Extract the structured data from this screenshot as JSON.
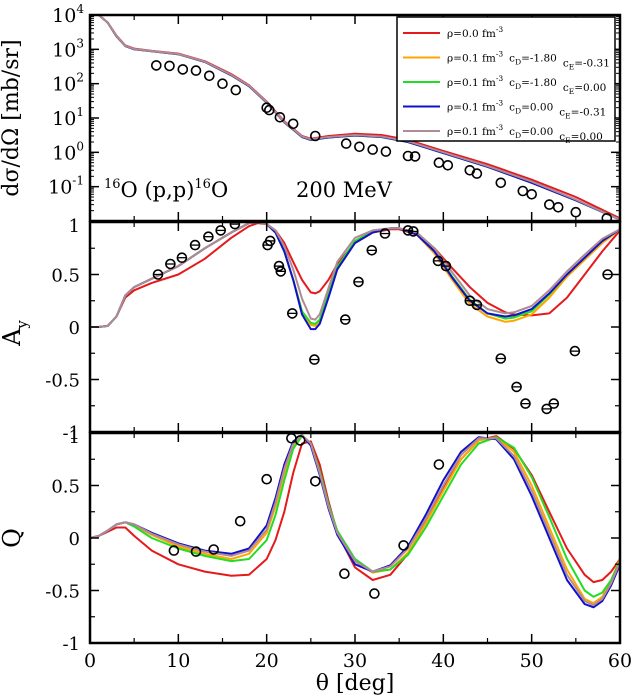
{
  "chart_data": {
    "type": "line",
    "x_axis": {
      "label": "θ [deg]",
      "range": [
        0,
        60
      ],
      "ticks": [
        0,
        10,
        20,
        30,
        40,
        50,
        60
      ],
      "tick_labels": [
        "0",
        "10",
        "20",
        "30",
        "40",
        "50",
        "60"
      ]
    },
    "annotation": {
      "nucleus": "16",
      "reaction_mid": "O (p,p)",
      "nucleus2": "16",
      "reaction_end": "O",
      "energy": "200 MeV"
    },
    "legend": [
      {
        "name": "ρ=0.0 fm",
        "sup": "-3",
        "tail": [],
        "color": "#e41a1c"
      },
      {
        "name": "ρ=0.1 fm",
        "sup": "-3",
        "tail": [
          [
            "c",
            "D",
            "=-1.80"
          ],
          [
            "c",
            "E",
            "=-0.31"
          ]
        ],
        "color": "#ffa500"
      },
      {
        "name": "ρ=0.1 fm",
        "sup": "-3",
        "tail": [
          [
            "c",
            "D",
            "=-1.80"
          ],
          [
            "c",
            "E",
            "=0.00"
          ]
        ],
        "color": "#22dd22"
      },
      {
        "name": "ρ=0.1 fm",
        "sup": "-3",
        "tail": [
          [
            "c",
            "D",
            "=0.00"
          ],
          [
            "c",
            "E",
            "=-0.31"
          ]
        ],
        "color": "#1111cc"
      },
      {
        "name": "ρ=0.1 fm",
        "sup": "-3",
        "tail": [
          [
            "c",
            "D",
            "=0.00"
          ],
          [
            "c",
            "E",
            "=0.00"
          ]
        ],
        "color": "#b08a95"
      }
    ],
    "panels": [
      {
        "id": "cross_section",
        "ylabel": "dσ/dΩ [mb/sr]",
        "yscale": "log",
        "ylim": [
          0.01,
          10000
        ],
        "y_tick_labels": [
          {
            "base": "10",
            "exp": "-1",
            "value": 0.1
          },
          {
            "base": "10",
            "exp": "0",
            "value": 1
          },
          {
            "base": "10",
            "exp": "1",
            "value": 10
          },
          {
            "base": "10",
            "exp": "2",
            "value": 100
          },
          {
            "base": "10",
            "exp": "3",
            "value": 1000
          },
          {
            "base": "10",
            "exp": "4",
            "value": 10000
          }
        ],
        "x": [
          1,
          2,
          3,
          4,
          5,
          7,
          10,
          13,
          16,
          18,
          20,
          22,
          24,
          25,
          27,
          30,
          33,
          36,
          40,
          45,
          50,
          55,
          60
        ],
        "series": [
          {
            "name": "rho0",
            "values": [
              10000,
              6000,
              2500,
              1300,
              1050,
              900,
              750,
              450,
              190,
              90,
              30,
              8,
              3,
              2.5,
              3.0,
              3.5,
              3.2,
              2.3,
              1.1,
              0.45,
              0.16,
              0.05,
              0.012
            ]
          },
          {
            "name": "cD-1.80_cE-0.31",
            "values": [
              10000,
              6000,
              2400,
              1250,
              1000,
              880,
              720,
              430,
              175,
              85,
              28,
              7.5,
              2.8,
              2.3,
              2.7,
              3.1,
              2.8,
              2.0,
              0.95,
              0.38,
              0.13,
              0.04,
              0.011
            ]
          },
          {
            "name": "cD-1.80_cE0.00",
            "values": [
              10000,
              6000,
              2400,
              1250,
              1000,
              880,
              720,
              430,
              175,
              85,
              28,
              7.5,
              2.8,
              2.3,
              2.7,
              3.1,
              2.8,
              2.0,
              0.95,
              0.38,
              0.13,
              0.04,
              0.011
            ]
          },
          {
            "name": "cD0.00_cE-0.31",
            "values": [
              10000,
              6000,
              2400,
              1250,
              1000,
              880,
              720,
              430,
              175,
              85,
              28,
              7.5,
              2.8,
              2.3,
              2.7,
              3.1,
              2.8,
              2.0,
              0.95,
              0.38,
              0.13,
              0.04,
              0.011
            ]
          },
          {
            "name": "cD0.00_cE0.00",
            "values": [
              10000,
              6000,
              2450,
              1270,
              1020,
              890,
              730,
              440,
              180,
              87,
              29,
              7.7,
              2.9,
              2.4,
              2.8,
              3.2,
              2.9,
              2.1,
              1.0,
              0.4,
              0.14,
              0.042,
              0.011
            ]
          }
        ],
        "data_points": {
          "x": [
            7.5,
            9,
            10.5,
            12,
            13.5,
            15,
            16.5,
            20,
            20.3,
            21.5,
            23,
            25.5,
            29,
            30.5,
            32,
            33.5,
            36,
            36.8,
            39.5,
            40.5,
            43,
            43.8,
            46.5,
            49,
            50,
            52,
            53,
            55,
            58.5
          ],
          "y": [
            340,
            330,
            260,
            240,
            170,
            100,
            65,
            20,
            17,
            10.5,
            6.8,
            3.0,
            1.8,
            1.45,
            1.2,
            1.05,
            0.78,
            0.76,
            0.5,
            0.42,
            0.3,
            0.24,
            0.13,
            0.075,
            0.06,
            0.03,
            0.025,
            0.018,
            0.012
          ]
        }
      },
      {
        "id": "analyzing_power",
        "ylabel_main": "A",
        "ylabel_sub": "y",
        "ylim": [
          -1,
          1
        ],
        "ticks": [
          -1,
          -0.5,
          0,
          0.5,
          1
        ],
        "tick_labels": [
          "-1",
          "-0.5",
          "0",
          "0.5",
          "1"
        ],
        "x": [
          0,
          1,
          2,
          3,
          4,
          5,
          7,
          10,
          13,
          16,
          18,
          19,
          20,
          21,
          22,
          23,
          24,
          25,
          25.5,
          26,
          27,
          28,
          30,
          32,
          34,
          35,
          37,
          39,
          41,
          43,
          45,
          47,
          48,
          50,
          52,
          54,
          56,
          58,
          60
        ],
        "series": [
          {
            "name": "rho0",
            "values": [
              0,
              0,
              0.01,
              0.1,
              0.28,
              0.35,
              0.42,
              0.5,
              0.65,
              0.85,
              0.96,
              0.99,
              0.98,
              0.92,
              0.8,
              0.62,
              0.45,
              0.33,
              0.32,
              0.34,
              0.45,
              0.6,
              0.8,
              0.9,
              0.93,
              0.93,
              0.88,
              0.75,
              0.56,
              0.38,
              0.23,
              0.14,
              0.12,
              0.11,
              0.13,
              0.28,
              0.5,
              0.72,
              0.92
            ]
          },
          {
            "name": "cD-1.80_cE-0.31",
            "values": [
              0,
              0,
              0.01,
              0.1,
              0.3,
              0.38,
              0.46,
              0.58,
              0.75,
              0.9,
              0.99,
              1.0,
              0.98,
              0.9,
              0.72,
              0.45,
              0.15,
              0.02,
              0.01,
              0.05,
              0.3,
              0.55,
              0.8,
              0.9,
              0.94,
              0.94,
              0.88,
              0.7,
              0.45,
              0.22,
              0.1,
              0.05,
              0.06,
              0.12,
              0.28,
              0.48,
              0.64,
              0.8,
              0.93
            ]
          },
          {
            "name": "cD-1.80_cE0.00",
            "values": [
              0,
              0,
              0.01,
              0.1,
              0.3,
              0.38,
              0.46,
              0.58,
              0.75,
              0.9,
              0.99,
              1.0,
              0.98,
              0.9,
              0.72,
              0.45,
              0.15,
              0.04,
              0.03,
              0.07,
              0.32,
              0.57,
              0.82,
              0.91,
              0.94,
              0.94,
              0.89,
              0.72,
              0.48,
              0.26,
              0.13,
              0.08,
              0.09,
              0.15,
              0.31,
              0.5,
              0.66,
              0.82,
              0.93
            ]
          },
          {
            "name": "cD0.00_cE-0.31",
            "values": [
              0,
              0,
              0.01,
              0.1,
              0.3,
              0.38,
              0.46,
              0.58,
              0.75,
              0.9,
              0.99,
              1.0,
              0.98,
              0.9,
              0.72,
              0.45,
              0.12,
              -0.02,
              -0.02,
              0.03,
              0.28,
              0.55,
              0.8,
              0.9,
              0.94,
              0.94,
              0.88,
              0.72,
              0.47,
              0.25,
              0.13,
              0.1,
              0.11,
              0.17,
              0.32,
              0.5,
              0.66,
              0.82,
              0.93
            ]
          },
          {
            "name": "cD0.00_cE0.00",
            "values": [
              0,
              0,
              0.01,
              0.1,
              0.3,
              0.38,
              0.46,
              0.58,
              0.75,
              0.9,
              0.99,
              1.0,
              0.98,
              0.92,
              0.77,
              0.55,
              0.27,
              0.08,
              0.07,
              0.12,
              0.37,
              0.62,
              0.85,
              0.92,
              0.94,
              0.94,
              0.9,
              0.75,
              0.52,
              0.3,
              0.17,
              0.13,
              0.14,
              0.2,
              0.35,
              0.53,
              0.69,
              0.84,
              0.93
            ]
          }
        ],
        "data_points": {
          "x": [
            7.7,
            9.1,
            10.4,
            11.9,
            13.4,
            14.8,
            16.4,
            20.1,
            20.4,
            21.4,
            21.6,
            22.9,
            25.4,
            28.9,
            30.4,
            31.9,
            33.4,
            36.0,
            36.6,
            39.4,
            40.3,
            43.0,
            43.8,
            46.5,
            48.3,
            49.3,
            51.7,
            52.5,
            54.9,
            58.6
          ],
          "y": [
            0.5,
            0.6,
            0.66,
            0.78,
            0.86,
            0.92,
            0.98,
            0.78,
            0.82,
            0.58,
            0.53,
            0.13,
            -0.31,
            0.07,
            0.43,
            0.73,
            0.89,
            0.92,
            0.91,
            0.63,
            0.58,
            0.25,
            0.21,
            -0.3,
            -0.57,
            -0.73,
            -0.78,
            -0.73,
            -0.23,
            0.5
          ]
        }
      },
      {
        "id": "spin_rotation",
        "ylabel": "Q",
        "ylim": [
          -1,
          1
        ],
        "ticks": [
          -1,
          -0.5,
          0,
          0.5,
          1
        ],
        "tick_labels": [
          "-1",
          "-0.5",
          "0",
          "0.5",
          "1"
        ],
        "x": [
          0,
          1,
          2,
          3,
          4,
          5,
          7,
          10,
          13,
          16,
          18,
          20,
          21,
          22,
          23,
          24,
          25,
          26,
          27,
          28,
          30,
          32,
          34,
          36,
          38,
          40,
          42,
          44,
          46,
          48,
          50,
          52,
          54,
          56,
          57,
          58,
          59,
          60
        ],
        "series": [
          {
            "name": "rho0",
            "values": [
              0,
              0.02,
              0.06,
              0.1,
              0.1,
              0.02,
              -0.12,
              -0.25,
              -0.32,
              -0.36,
              -0.35,
              -0.2,
              -0.02,
              0.25,
              0.62,
              0.9,
              0.92,
              0.7,
              0.35,
              0.05,
              -0.28,
              -0.4,
              -0.35,
              -0.15,
              0.15,
              0.48,
              0.75,
              0.93,
              0.97,
              0.85,
              0.6,
              0.25,
              -0.1,
              -0.35,
              -0.42,
              -0.4,
              -0.32,
              -0.2
            ]
          },
          {
            "name": "cD-1.80_cE-0.31",
            "values": [
              0,
              0.02,
              0.07,
              0.13,
              0.15,
              0.12,
              0.03,
              -0.08,
              -0.15,
              -0.2,
              -0.15,
              0.05,
              0.3,
              0.62,
              0.88,
              0.98,
              0.9,
              0.62,
              0.3,
              0.05,
              -0.22,
              -0.33,
              -0.3,
              -0.14,
              0.14,
              0.45,
              0.75,
              0.93,
              0.96,
              0.82,
              0.5,
              0.1,
              -0.3,
              -0.58,
              -0.62,
              -0.56,
              -0.4,
              -0.2
            ]
          },
          {
            "name": "cD-1.80_cE0.00",
            "values": [
              0,
              0.02,
              0.07,
              0.13,
              0.15,
              0.11,
              0.0,
              -0.1,
              -0.17,
              -0.22,
              -0.2,
              -0.02,
              0.22,
              0.55,
              0.85,
              0.97,
              0.9,
              0.64,
              0.32,
              0.07,
              -0.2,
              -0.32,
              -0.3,
              -0.16,
              0.1,
              0.4,
              0.7,
              0.9,
              0.96,
              0.86,
              0.58,
              0.2,
              -0.2,
              -0.5,
              -0.56,
              -0.52,
              -0.4,
              -0.22
            ]
          },
          {
            "name": "cD0.00_cE-0.31",
            "values": [
              0,
              0.02,
              0.07,
              0.13,
              0.15,
              0.13,
              0.05,
              -0.05,
              -0.12,
              -0.15,
              -0.1,
              0.12,
              0.38,
              0.7,
              0.92,
              0.98,
              0.88,
              0.6,
              0.28,
              0.03,
              -0.25,
              -0.32,
              -0.26,
              -0.08,
              0.22,
              0.55,
              0.82,
              0.96,
              0.94,
              0.75,
              0.4,
              0.0,
              -0.4,
              -0.63,
              -0.66,
              -0.6,
              -0.45,
              -0.25
            ]
          },
          {
            "name": "cD0.00_cE0.00",
            "values": [
              0,
              0.02,
              0.07,
              0.13,
              0.15,
              0.13,
              0.04,
              -0.06,
              -0.13,
              -0.17,
              -0.12,
              0.08,
              0.34,
              0.66,
              0.9,
              0.98,
              0.9,
              0.62,
              0.3,
              0.05,
              -0.22,
              -0.32,
              -0.27,
              -0.1,
              0.18,
              0.5,
              0.79,
              0.95,
              0.95,
              0.78,
              0.45,
              0.05,
              -0.35,
              -0.6,
              -0.64,
              -0.58,
              -0.43,
              -0.23
            ]
          }
        ],
        "data_points": {
          "x": [
            9.5,
            12.0,
            14.0,
            17.0,
            20.0,
            22.8,
            23.8,
            25.5,
            28.8,
            32.2,
            35.5,
            39.5
          ],
          "y": [
            -0.12,
            -0.13,
            -0.11,
            0.16,
            0.56,
            0.95,
            0.93,
            0.54,
            -0.34,
            -0.53,
            -0.07,
            0.7
          ]
        }
      }
    ]
  }
}
